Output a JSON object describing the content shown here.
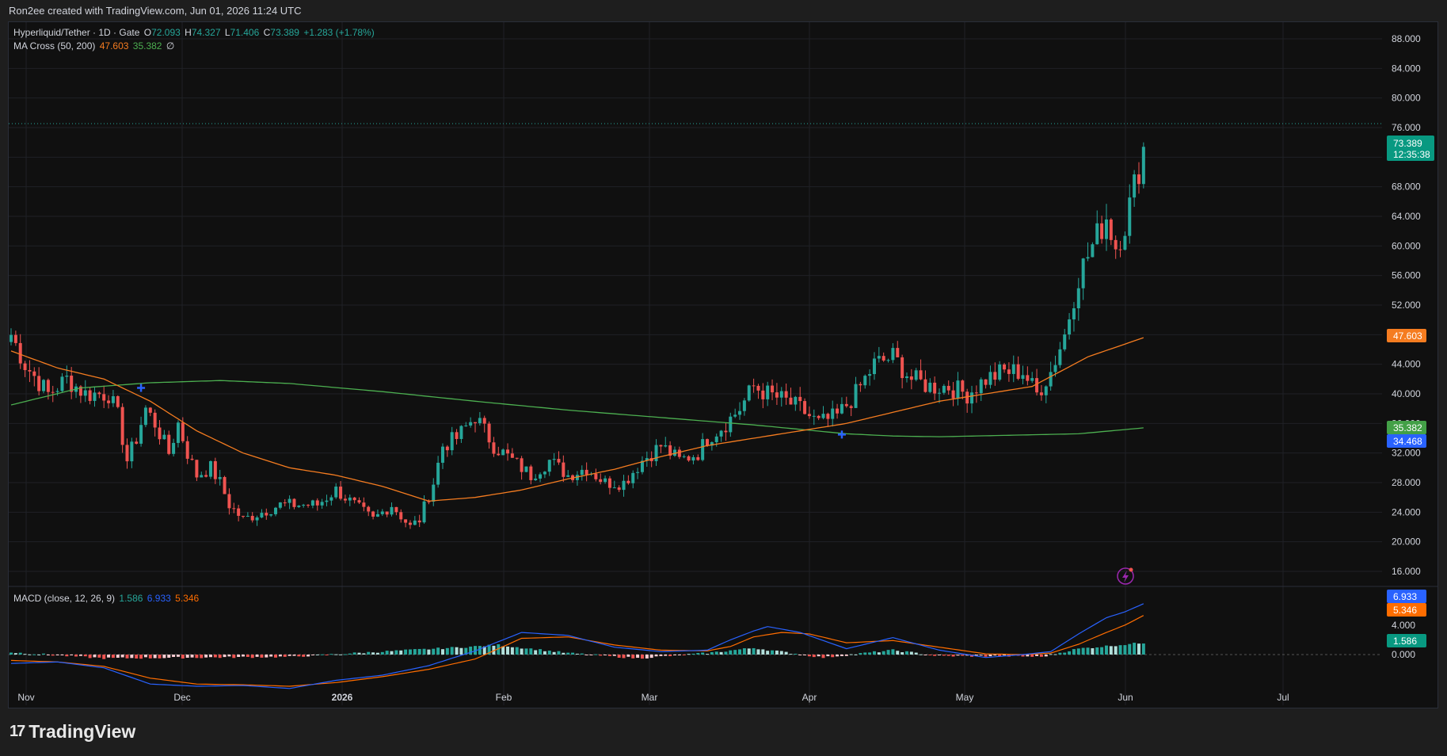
{
  "header": {
    "attribution": "Ron2ee created with TradingView.com, Jun 01, 2026 11:24 UTC"
  },
  "symbol": {
    "name": "Hyperliquid/Tether · 1D · Gate",
    "o_label": "O",
    "o_value": "72.093",
    "h_label": "H",
    "h_value": "74.327",
    "l_label": "L",
    "l_value": "71.406",
    "c_label": "C",
    "c_value": "73.389",
    "change": "+1.283 (+1.78%)"
  },
  "ma_legend": {
    "name": "MA Cross (50, 200)",
    "ma50": "47.603",
    "ma200": "35.382",
    "symbol": "∅"
  },
  "macd_legend": {
    "name": "MACD (close, 12, 26, 9)",
    "hist": "1.586",
    "macd": "6.933",
    "signal": "5.346"
  },
  "price_tags": {
    "last": "73.389",
    "countdown": "12:35:38",
    "ma50": "47.603",
    "ma200": "35.382",
    "cross": "34.468"
  },
  "macd_tags": {
    "macd": "6.933",
    "signal": "5.346",
    "hist": "1.586"
  },
  "footer": {
    "brand": "TradingView"
  },
  "colors": {
    "up": "#26a69a",
    "down": "#ef5350",
    "ma50": "#f57c20",
    "ma200": "#4caf50",
    "macd": "#2962ff",
    "signal": "#ff6d00",
    "grid": "#1f2126",
    "cross": "#2962ff"
  },
  "chart_data": [
    {
      "type": "candlestick",
      "title": "Hyperliquid/Tether · 1D · Gate",
      "x_ticks": [
        "Nov",
        "Dec",
        "2026",
        "Feb",
        "Mar",
        "Apr",
        "May",
        "Jun",
        "Jul"
      ],
      "y_ticks": [
        "16.000",
        "20.000",
        "24.000",
        "28.000",
        "32.000",
        "36.000",
        "40.000",
        "44.000",
        "48.000",
        "52.000",
        "56.000",
        "60.000",
        "64.000",
        "68.000",
        "72.000",
        "76.000",
        "80.000",
        "84.000",
        "88.000"
      ],
      "ylim": [
        14.5,
        89.5
      ],
      "anchors": {
        "comment_free": true,
        "closes": [
          [
            0,
            48
          ],
          [
            3,
            44
          ],
          [
            8,
            40
          ],
          [
            12,
            42
          ],
          [
            16,
            40
          ],
          [
            21,
            40
          ],
          [
            23,
            37
          ],
          [
            25,
            31
          ],
          [
            27,
            34
          ],
          [
            29,
            38
          ],
          [
            31,
            36
          ],
          [
            34,
            32
          ],
          [
            36,
            36
          ],
          [
            38,
            32
          ],
          [
            40,
            29
          ],
          [
            43,
            30
          ],
          [
            45,
            28
          ],
          [
            47,
            25
          ],
          [
            50,
            23
          ],
          [
            54,
            24
          ],
          [
            58,
            25
          ],
          [
            62,
            25
          ],
          [
            66,
            25
          ],
          [
            70,
            27
          ],
          [
            74,
            25
          ],
          [
            78,
            23
          ],
          [
            82,
            25
          ],
          [
            86,
            22
          ],
          [
            88,
            23
          ],
          [
            91,
            28
          ],
          [
            93,
            33
          ],
          [
            96,
            34
          ],
          [
            100,
            37
          ],
          [
            104,
            33
          ],
          [
            108,
            31
          ],
          [
            112,
            29
          ],
          [
            116,
            31
          ],
          [
            120,
            29
          ],
          [
            124,
            30
          ],
          [
            128,
            28
          ],
          [
            132,
            28
          ],
          [
            136,
            31
          ],
          [
            140,
            33
          ],
          [
            144,
            31
          ],
          [
            148,
            32
          ],
          [
            150,
            34
          ],
          [
            154,
            36
          ],
          [
            157,
            38
          ],
          [
            160,
            41
          ],
          [
            163,
            40
          ],
          [
            167,
            39
          ],
          [
            170,
            38
          ],
          [
            174,
            36
          ],
          [
            178,
            37
          ],
          [
            182,
            40
          ],
          [
            186,
            44
          ],
          [
            190,
            45
          ],
          [
            194,
            42
          ],
          [
            198,
            41
          ],
          [
            202,
            41
          ],
          [
            206,
            40
          ],
          [
            210,
            42
          ],
          [
            214,
            43
          ],
          [
            218,
            43
          ],
          [
            221,
            40
          ],
          [
            224,
            43
          ],
          [
            227,
            48
          ],
          [
            230,
            56
          ],
          [
            233,
            60
          ],
          [
            236,
            64
          ],
          [
            238,
            60
          ],
          [
            240,
            63
          ],
          [
            242,
            68
          ],
          [
            244,
            73.4
          ]
        ]
      },
      "ma50": [
        [
          0,
          45.8
        ],
        [
          10,
          43.5
        ],
        [
          20,
          42
        ],
        [
          30,
          39
        ],
        [
          40,
          35
        ],
        [
          50,
          32
        ],
        [
          60,
          30
        ],
        [
          70,
          29
        ],
        [
          80,
          27.5
        ],
        [
          90,
          25.5
        ],
        [
          100,
          26
        ],
        [
          110,
          27
        ],
        [
          120,
          28.5
        ],
        [
          130,
          29.8
        ],
        [
          140,
          31.5
        ],
        [
          150,
          33
        ],
        [
          160,
          34
        ],
        [
          170,
          35
        ],
        [
          180,
          36
        ],
        [
          190,
          37.5
        ],
        [
          200,
          39
        ],
        [
          210,
          40
        ],
        [
          220,
          41
        ],
        [
          226,
          43
        ],
        [
          232,
          45
        ],
        [
          244,
          47.6
        ]
      ],
      "ma200": [
        [
          0,
          38.5
        ],
        [
          15,
          40.8
        ],
        [
          30,
          41.5
        ],
        [
          45,
          41.8
        ],
        [
          60,
          41.4
        ],
        [
          80,
          40.3
        ],
        [
          100,
          39
        ],
        [
          120,
          37.8
        ],
        [
          140,
          36.8
        ],
        [
          160,
          35.8
        ],
        [
          170,
          35.2
        ],
        [
          180,
          34.6
        ],
        [
          190,
          34.3
        ],
        [
          200,
          34.2
        ],
        [
          215,
          34.4
        ],
        [
          230,
          34.6
        ],
        [
          244,
          35.4
        ]
      ],
      "crosses": [
        {
          "x": 28,
          "y": 40.8
        },
        {
          "x": 179,
          "y": 34.5
        }
      ]
    },
    {
      "type": "line",
      "title": "MACD (close, 12, 26, 9)",
      "y_ticks": [
        "0.000",
        "4.000"
      ],
      "macd": [
        [
          0,
          -1.2
        ],
        [
          10,
          -1
        ],
        [
          20,
          -1.8
        ],
        [
          30,
          -4
        ],
        [
          40,
          -4.3
        ],
        [
          50,
          -4.2
        ],
        [
          60,
          -4.6
        ],
        [
          70,
          -3.5
        ],
        [
          80,
          -2.8
        ],
        [
          90,
          -1.5
        ],
        [
          100,
          0.5
        ],
        [
          110,
          3
        ],
        [
          120,
          2.6
        ],
        [
          130,
          1
        ],
        [
          140,
          0.4
        ],
        [
          150,
          0.6
        ],
        [
          155,
          2
        ],
        [
          160,
          3.2
        ],
        [
          163,
          3.8
        ],
        [
          170,
          3
        ],
        [
          180,
          0.8
        ],
        [
          190,
          2.3
        ],
        [
          200,
          0.6
        ],
        [
          210,
          -0.4
        ],
        [
          218,
          0
        ],
        [
          224,
          0.4
        ],
        [
          230,
          2.8
        ],
        [
          236,
          5
        ],
        [
          240,
          5.8
        ],
        [
          244,
          6.9
        ]
      ],
      "signal": [
        [
          0,
          -0.8
        ],
        [
          10,
          -1
        ],
        [
          20,
          -1.6
        ],
        [
          30,
          -3.2
        ],
        [
          40,
          -4
        ],
        [
          50,
          -4.1
        ],
        [
          60,
          -4.3
        ],
        [
          70,
          -3.8
        ],
        [
          80,
          -3
        ],
        [
          90,
          -2
        ],
        [
          100,
          -0.6
        ],
        [
          110,
          2.2
        ],
        [
          120,
          2.4
        ],
        [
          130,
          1.3
        ],
        [
          140,
          0.6
        ],
        [
          150,
          0.5
        ],
        [
          155,
          1.1
        ],
        [
          160,
          2.4
        ],
        [
          166,
          3
        ],
        [
          172,
          2.8
        ],
        [
          180,
          1.6
        ],
        [
          190,
          1.9
        ],
        [
          200,
          1
        ],
        [
          210,
          0.1
        ],
        [
          218,
          0
        ],
        [
          224,
          0.2
        ],
        [
          230,
          1.4
        ],
        [
          236,
          3
        ],
        [
          240,
          4
        ],
        [
          244,
          5.3
        ]
      ],
      "hist": [
        [
          0,
          0.3
        ],
        [
          20,
          -0.5
        ],
        [
          40,
          -0.4
        ],
        [
          60,
          -0.3
        ],
        [
          80,
          0.4
        ],
        [
          100,
          1.1
        ],
        [
          105,
          1.3
        ],
        [
          120,
          0.2
        ],
        [
          135,
          -0.5
        ],
        [
          150,
          0.2
        ],
        [
          160,
          0.9
        ],
        [
          175,
          -0.4
        ],
        [
          190,
          0.6
        ],
        [
          200,
          -0.2
        ],
        [
          215,
          -0.2
        ],
        [
          222,
          -0.3
        ],
        [
          230,
          0.8
        ],
        [
          244,
          1.6
        ]
      ]
    }
  ]
}
